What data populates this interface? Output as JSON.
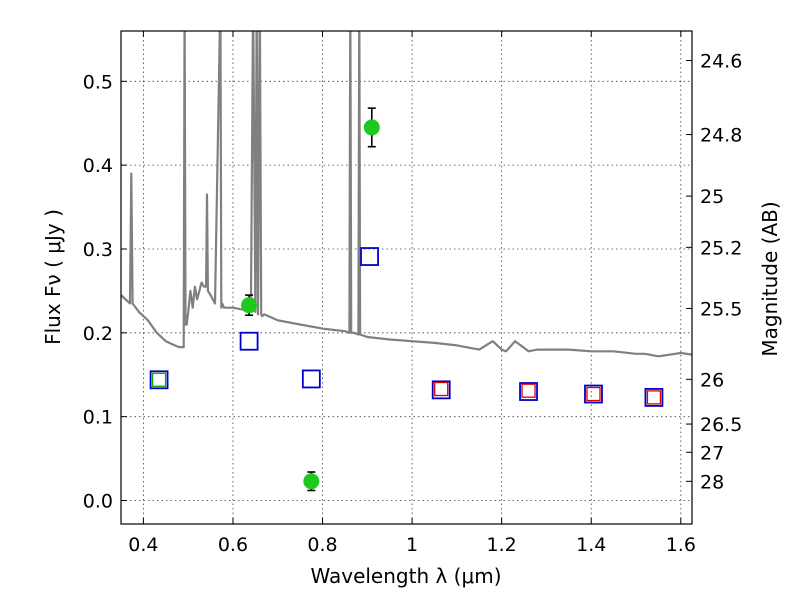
{
  "chart_data": {
    "type": "scatter",
    "xlabel": "Wavelength  λ (μm)",
    "ylabel": "Flux  Fν  ( μJy )",
    "y2label": "Magnitude (AB)",
    "xlim": [
      0.35,
      1.625
    ],
    "ylim": [
      -0.028,
      0.56
    ],
    "xticks": [
      0.4,
      0.6,
      0.8,
      1.0,
      1.2,
      1.4,
      1.6
    ],
    "xtick_labels": [
      "0.4",
      "0.6",
      "0.8",
      "1",
      "1.2",
      "1.4",
      "1.6"
    ],
    "yticks": [
      0.0,
      0.1,
      0.2,
      0.3,
      0.4,
      0.5
    ],
    "ytick_labels": [
      "0.0",
      "0.1",
      "0.2",
      "0.3",
      "0.4",
      "0.5"
    ],
    "magnitude_ticks": [
      "24.6",
      "24.8",
      "25",
      "25.2",
      "25.5",
      "26",
      "26.5",
      "27",
      "28"
    ],
    "grid": true,
    "series": [
      {
        "name": "model spectrum",
        "kind": "line",
        "color": "#808080",
        "x": [
          0.35,
          0.37,
          0.373,
          0.376,
          0.39,
          0.41,
          0.43,
          0.45,
          0.47,
          0.48,
          0.49,
          0.492,
          0.494,
          0.497,
          0.5,
          0.505,
          0.51,
          0.515,
          0.52,
          0.53,
          0.535,
          0.54,
          0.542,
          0.544,
          0.55,
          0.56,
          0.572,
          0.574,
          0.576,
          0.58,
          0.6,
          0.62,
          0.64,
          0.645,
          0.65,
          0.653,
          0.656,
          0.66,
          0.663,
          0.665,
          0.67,
          0.7,
          0.75,
          0.8,
          0.85,
          0.86,
          0.862,
          0.864,
          0.87,
          0.88,
          0.882,
          0.884,
          0.89,
          0.9,
          0.95,
          1.0,
          1.05,
          1.1,
          1.15,
          1.18,
          1.2,
          1.21,
          1.23,
          1.25,
          1.26,
          1.28,
          1.3,
          1.35,
          1.4,
          1.45,
          1.5,
          1.52,
          1.55,
          1.6,
          1.625
        ],
        "y": [
          0.245,
          0.235,
          0.39,
          0.235,
          0.225,
          0.215,
          0.2,
          0.19,
          0.185,
          0.183,
          0.183,
          0.6,
          0.21,
          0.21,
          0.225,
          0.25,
          0.23,
          0.255,
          0.24,
          0.26,
          0.255,
          0.255,
          0.365,
          0.25,
          0.245,
          0.235,
          0.6,
          0.23,
          0.235,
          0.23,
          0.23,
          0.228,
          0.225,
          0.6,
          0.225,
          0.6,
          0.222,
          0.6,
          0.222,
          0.22,
          0.222,
          0.215,
          0.21,
          0.205,
          0.202,
          0.2,
          0.6,
          0.2,
          0.2,
          0.198,
          0.6,
          0.198,
          0.197,
          0.195,
          0.192,
          0.19,
          0.188,
          0.185,
          0.18,
          0.19,
          0.18,
          0.178,
          0.19,
          0.182,
          0.178,
          0.18,
          0.18,
          0.18,
          0.178,
          0.178,
          0.175,
          0.175,
          0.172,
          0.176,
          0.174
        ]
      },
      {
        "name": "observed photometry",
        "kind": "points_errorbar",
        "marker": "filled-circle",
        "color": "#1ec81e",
        "x": [
          0.636,
          0.775,
          0.91
        ],
        "y": [
          0.233,
          0.023,
          0.445
        ],
        "yerr": [
          0.012,
          0.011,
          0.023
        ]
      },
      {
        "name": "model photometry (blue squares)",
        "kind": "points",
        "marker": "open-square",
        "color": "#0000cc",
        "x": [
          0.435,
          0.636,
          0.775,
          0.905,
          1.065,
          1.26,
          1.405,
          1.54
        ],
        "y": [
          0.144,
          0.19,
          0.145,
          0.291,
          0.132,
          0.13,
          0.127,
          0.123
        ]
      },
      {
        "name": "model photometry (red squares)",
        "kind": "points",
        "marker": "open-square",
        "color": "#dd0000",
        "x": [
          1.065,
          1.26,
          1.405,
          1.54
        ],
        "y": [
          0.133,
          0.131,
          0.127,
          0.123
        ]
      },
      {
        "name": "model photometry (green square)",
        "kind": "points",
        "marker": "open-square",
        "color": "#00aa00",
        "x": [
          0.435
        ],
        "y": [
          0.144
        ]
      }
    ]
  }
}
